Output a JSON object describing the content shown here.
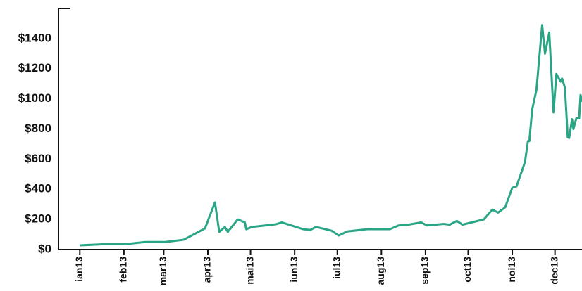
{
  "chart_data": {
    "type": "line",
    "x": [
      0,
      16,
      31,
      46,
      60,
      73,
      88,
      95,
      98,
      102,
      104,
      111,
      116,
      117,
      121,
      138,
      142,
      157,
      162,
      166,
      177,
      182,
      188,
      202,
      218,
      224,
      231,
      240,
      244,
      256,
      260,
      265,
      269,
      284,
      290,
      294,
      299,
      304,
      307,
      312,
      313,
      315,
      316,
      318,
      321,
      325,
      327,
      330,
      333,
      335,
      338,
      339,
      341,
      343,
      344,
      346,
      347,
      349,
      351,
      352,
      353
    ],
    "series": [
      {
        "color": "#2aa585",
        "values": [
          28,
          35,
          35,
          50,
          50,
          65,
          140,
          313,
          117,
          150,
          117,
          200,
          180,
          135,
          150,
          168,
          180,
          135,
          130,
          150,
          125,
          93,
          120,
          135,
          135,
          160,
          165,
          180,
          160,
          170,
          165,
          190,
          165,
          200,
          265,
          245,
          280,
          410,
          420,
          555,
          585,
          720,
          720,
          930,
          1060,
          1490,
          1300,
          1440,
          910,
          1165,
          1115,
          1135,
          1075,
          745,
          740,
          865,
          800,
          870,
          870,
          1025,
          980
        ]
      }
    ],
    "xlim": [
      -15,
      353
    ],
    "xticks": [
      {
        "value": 0,
        "label": "ian13"
      },
      {
        "value": 31,
        "label": "feb13"
      },
      {
        "value": 59,
        "label": "mar13"
      },
      {
        "value": 90,
        "label": "apr13"
      },
      {
        "value": 120,
        "label": "mai13"
      },
      {
        "value": 151,
        "label": "iun13"
      },
      {
        "value": 181,
        "label": "iul13"
      },
      {
        "value": 212,
        "label": "aug13"
      },
      {
        "value": 243,
        "label": "sep13"
      },
      {
        "value": 273,
        "label": "oct13"
      },
      {
        "value": 304,
        "label": "noi13"
      },
      {
        "value": 334,
        "label": "dec13"
      }
    ],
    "ylim": [
      0,
      1600
    ],
    "yticks": [
      {
        "value": 0,
        "label": "$0"
      },
      {
        "value": 200,
        "label": "$200"
      },
      {
        "value": 400,
        "label": "$400"
      },
      {
        "value": 600,
        "label": "$600"
      },
      {
        "value": 800,
        "label": "$800"
      },
      {
        "value": 1000,
        "label": "$1000"
      },
      {
        "value": 1200,
        "label": "$1200"
      },
      {
        "value": 1400,
        "label": "$1400"
      }
    ]
  }
}
